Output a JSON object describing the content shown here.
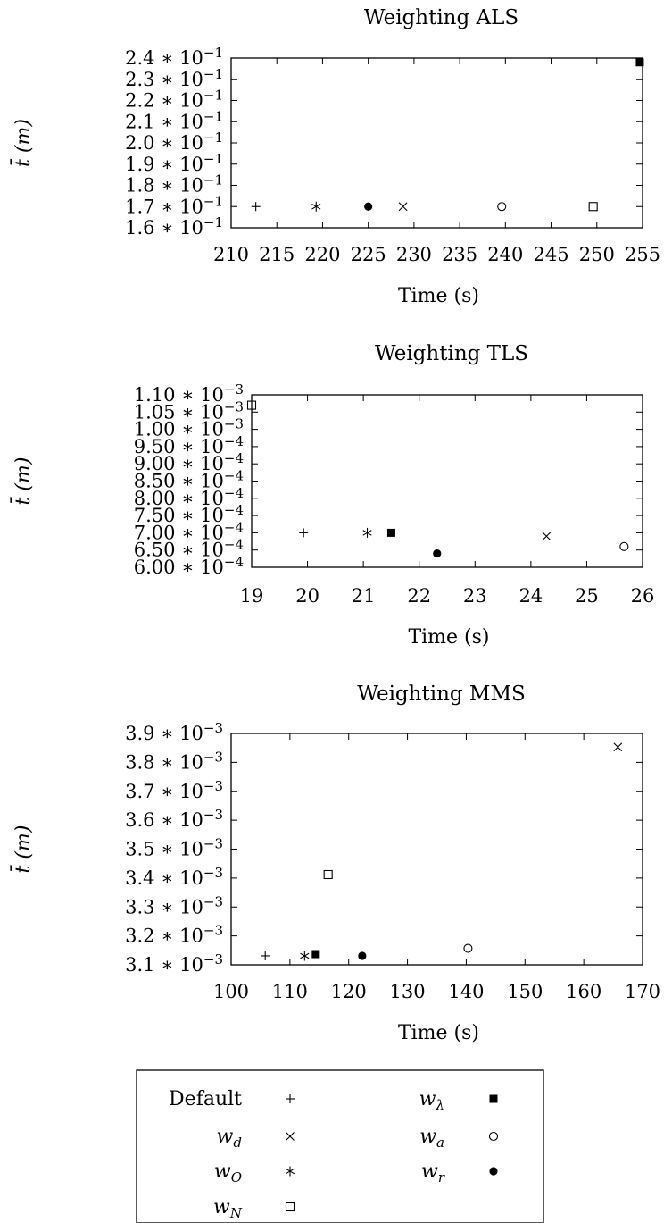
{
  "chart_data": [
    {
      "type": "scatter",
      "title": "Weighting ALS",
      "xlabel": "Time (s)",
      "ylabel": "t̄ (m)",
      "xlim": [
        210,
        255
      ],
      "ylim": [
        0.16,
        0.24
      ],
      "x_ticks": [
        "210",
        "215",
        "220",
        "225",
        "230",
        "235",
        "240",
        "245",
        "250",
        "255"
      ],
      "y_ticks": [
        "2.4 ∗ 10⁻¹",
        "2.3 ∗ 10⁻¹",
        "2.2 ∗ 10⁻¹",
        "2.1 ∗ 10⁻¹",
        "2.0 ∗ 10⁻¹",
        "1.9 ∗ 10⁻¹",
        "1.8 ∗ 10⁻¹",
        "1.7 ∗ 10⁻¹",
        "1.6 ∗ 10⁻¹"
      ],
      "series": [
        {
          "name": "Default",
          "marker": "plus",
          "x": 212.7,
          "y": 0.17
        },
        {
          "name": "w_O",
          "marker": "asterisk",
          "x": 219.3,
          "y": 0.17
        },
        {
          "name": "w_r",
          "marker": "filled-circle",
          "x": 225.0,
          "y": 0.17
        },
        {
          "name": "w_d",
          "marker": "cross",
          "x": 228.8,
          "y": 0.17
        },
        {
          "name": "w_a",
          "marker": "open-circle",
          "x": 239.6,
          "y": 0.17
        },
        {
          "name": "w_N",
          "marker": "open-square",
          "x": 249.6,
          "y": 0.17
        },
        {
          "name": "w_λ",
          "marker": "filled-square",
          "x": 254.7,
          "y": 0.238
        }
      ]
    },
    {
      "type": "scatter",
      "title": "Weighting TLS",
      "xlabel": "Time (s)",
      "ylabel": "t̄ (m)",
      "xlim": [
        19,
        26
      ],
      "ylim": [
        0.0006,
        0.0011
      ],
      "x_ticks": [
        "19",
        "20",
        "21",
        "22",
        "23",
        "24",
        "25",
        "26"
      ],
      "y_ticks": [
        "1.10 ∗ 10⁻³",
        "1.05 ∗ 10⁻³",
        "1.00 ∗ 10⁻³",
        "9.50 ∗ 10⁻⁴",
        "9.00 ∗ 10⁻⁴",
        "8.50 ∗ 10⁻⁴",
        "8.00 ∗ 10⁻⁴",
        "7.50 ∗ 10⁻⁴",
        "7.00 ∗ 10⁻⁴",
        "6.50 ∗ 10⁻⁴",
        "6.00 ∗ 10⁻⁴"
      ],
      "series": [
        {
          "name": "w_N",
          "marker": "open-square",
          "x": 19.0,
          "y": 0.00107
        },
        {
          "name": "Default",
          "marker": "plus",
          "x": 19.93,
          "y": 0.0007
        },
        {
          "name": "w_O",
          "marker": "asterisk",
          "x": 21.07,
          "y": 0.0007
        },
        {
          "name": "w_λ",
          "marker": "filled-square",
          "x": 21.5,
          "y": 0.0007
        },
        {
          "name": "w_r",
          "marker": "filled-circle",
          "x": 22.32,
          "y": 0.00064
        },
        {
          "name": "w_d",
          "marker": "cross",
          "x": 24.28,
          "y": 0.00069
        },
        {
          "name": "w_a",
          "marker": "open-circle",
          "x": 25.67,
          "y": 0.00066
        }
      ]
    },
    {
      "type": "scatter",
      "title": "Weighting MMS",
      "xlabel": "Time (s)",
      "ylabel": "t̄ (m)",
      "xlim": [
        100,
        170
      ],
      "ylim": [
        0.0031,
        0.0039
      ],
      "x_ticks": [
        "100",
        "110",
        "120",
        "130",
        "140",
        "150",
        "160",
        "170"
      ],
      "y_ticks": [
        "3.9 ∗ 10⁻³",
        "3.8 ∗ 10⁻³",
        "3.7 ∗ 10⁻³",
        "3.6 ∗ 10⁻³",
        "3.5 ∗ 10⁻³",
        "3.4 ∗ 10⁻³",
        "3.3 ∗ 10⁻³",
        "3.2 ∗ 10⁻³",
        "3.1 ∗ 10⁻³"
      ],
      "series": [
        {
          "name": "Default",
          "marker": "plus",
          "x": 105.8,
          "y": 0.003131
        },
        {
          "name": "w_O",
          "marker": "asterisk",
          "x": 112.5,
          "y": 0.003131
        },
        {
          "name": "w_λ",
          "marker": "filled-square",
          "x": 114.4,
          "y": 0.003137
        },
        {
          "name": "w_N",
          "marker": "open-square",
          "x": 116.5,
          "y": 0.003412
        },
        {
          "name": "w_r",
          "marker": "filled-circle",
          "x": 122.3,
          "y": 0.003131
        },
        {
          "name": "w_a",
          "marker": "open-circle",
          "x": 140.3,
          "y": 0.003157
        },
        {
          "name": "w_d",
          "marker": "cross",
          "x": 165.8,
          "y": 0.003853
        }
      ]
    }
  ],
  "legend": {
    "entries": [
      {
        "label": "Default",
        "italic": false,
        "marker": "plus",
        "col": 0,
        "row": 0
      },
      {
        "label": "w",
        "sub": "d",
        "italic": true,
        "marker": "cross",
        "col": 0,
        "row": 1
      },
      {
        "label": "w",
        "sub": "O",
        "italic": true,
        "marker": "asterisk",
        "col": 0,
        "row": 2
      },
      {
        "label": "w",
        "sub": "N",
        "italic": true,
        "marker": "open-square",
        "col": 0,
        "row": 3
      },
      {
        "label": "w",
        "sub": "λ",
        "italic": true,
        "marker": "filled-square",
        "col": 1,
        "row": 0
      },
      {
        "label": "w",
        "sub": "a",
        "italic": true,
        "marker": "open-circle",
        "col": 1,
        "row": 1
      },
      {
        "label": "w",
        "sub": "r",
        "italic": true,
        "marker": "filled-circle",
        "col": 1,
        "row": 2
      }
    ]
  }
}
